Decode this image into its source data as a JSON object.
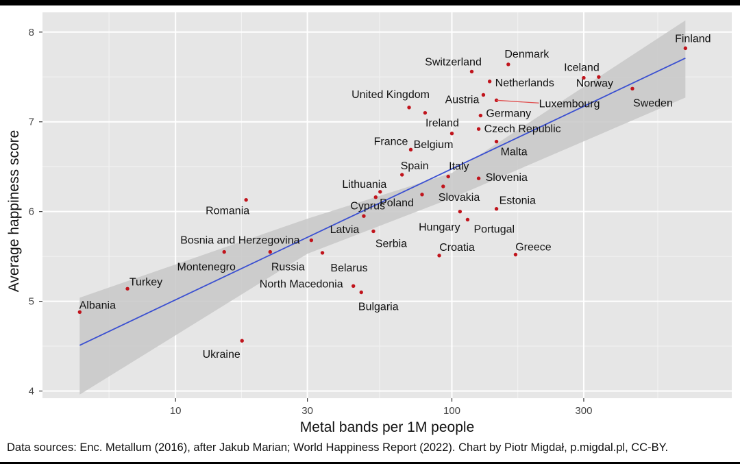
{
  "chart_data": {
    "type": "scatter",
    "title": "",
    "xlabel": "Metal bands per 1M people",
    "ylabel": "Average happiness score",
    "x_scale": "log10",
    "xlim": [
      3.3,
      1030
    ],
    "ylim": [
      3.92,
      8.22
    ],
    "x_ticks": [
      10,
      30,
      100,
      300
    ],
    "y_ticks": [
      4,
      5,
      6,
      7,
      8
    ],
    "grid": true,
    "legend": "none",
    "colors": {
      "panel": "#e6e6e6",
      "grid_major": "#ffffff",
      "point": "#c0141c",
      "trend_line": "#3a4fd1",
      "confidence_band": "#c7c7c7"
    },
    "trend_line": {
      "x": [
        4.5,
        700
      ],
      "y": [
        4.51,
        7.71
      ]
    },
    "confidence_band": {
      "x": [
        4.5,
        30,
        100,
        700
      ],
      "upper": [
        5.04,
        5.92,
        6.43,
        8.13
      ],
      "lower": [
        3.96,
        5.53,
        6.15,
        7.27
      ]
    },
    "points": [
      {
        "country": "Finland",
        "x": 700,
        "y": 7.82
      },
      {
        "country": "Denmark",
        "x": 160,
        "y": 7.64
      },
      {
        "country": "Iceland",
        "x": 300,
        "y": 7.49
      },
      {
        "country": "Norway",
        "x": 340,
        "y": 7.5
      },
      {
        "country": "Sweden",
        "x": 450,
        "y": 7.37
      },
      {
        "country": "Switzerland",
        "x": 118,
        "y": 7.56
      },
      {
        "country": "Netherlands",
        "x": 137,
        "y": 7.45
      },
      {
        "country": "Austria",
        "x": 130,
        "y": 7.3
      },
      {
        "country": "Luxembourg",
        "x": 145,
        "y": 7.24
      },
      {
        "country": "Germany",
        "x": 127,
        "y": 7.07
      },
      {
        "country": "United Kingdom",
        "x": 70,
        "y": 7.16
      },
      {
        "country": "Ireland",
        "x": 80,
        "y": 7.1
      },
      {
        "country": "Czech Republic",
        "x": 125,
        "y": 6.92
      },
      {
        "country": "Belgium",
        "x": 100,
        "y": 6.87
      },
      {
        "country": "Malta",
        "x": 145,
        "y": 6.78
      },
      {
        "country": "France",
        "x": 71,
        "y": 6.69
      },
      {
        "country": "Spain",
        "x": 66,
        "y": 6.41
      },
      {
        "country": "Italy",
        "x": 97,
        "y": 6.39
      },
      {
        "country": "Slovenia",
        "x": 125,
        "y": 6.37
      },
      {
        "country": "Slovakia",
        "x": 93,
        "y": 6.28
      },
      {
        "country": "Lithuania",
        "x": 55,
        "y": 6.22
      },
      {
        "country": "Cyprus",
        "x": 53,
        "y": 6.16
      },
      {
        "country": "Poland",
        "x": 78,
        "y": 6.19
      },
      {
        "country": "Estonia",
        "x": 145,
        "y": 6.03
      },
      {
        "country": "Hungary",
        "x": 107,
        "y": 6.0
      },
      {
        "country": "Portugal",
        "x": 114,
        "y": 5.91
      },
      {
        "country": "Latvia",
        "x": 48,
        "y": 5.95
      },
      {
        "country": "Serbia",
        "x": 52,
        "y": 5.78
      },
      {
        "country": "Romania",
        "x": 18,
        "y": 6.13
      },
      {
        "country": "Bosnia and Herzegovina",
        "x": 31,
        "y": 5.68
      },
      {
        "country": "Montenegro",
        "x": 15,
        "y": 5.55
      },
      {
        "country": "Russia",
        "x": 22,
        "y": 5.55
      },
      {
        "country": "Belarus",
        "x": 34,
        "y": 5.54
      },
      {
        "country": "Croatia",
        "x": 90,
        "y": 5.51
      },
      {
        "country": "Greece",
        "x": 170,
        "y": 5.52
      },
      {
        "country": "North Macedonia",
        "x": 44,
        "y": 5.17
      },
      {
        "country": "Bulgaria",
        "x": 47,
        "y": 5.1
      },
      {
        "country": "Turkey",
        "x": 6.7,
        "y": 5.14
      },
      {
        "country": "Albania",
        "x": 4.5,
        "y": 4.88
      },
      {
        "country": "Ukraine",
        "x": 17.4,
        "y": 4.56
      }
    ]
  },
  "source_note": "Data sources: Enc. Metallum (2016), after Jakub Marian; World Happiness Report (2022). Chart by Piotr Migdał, p.migdal.pl, CC-BY."
}
